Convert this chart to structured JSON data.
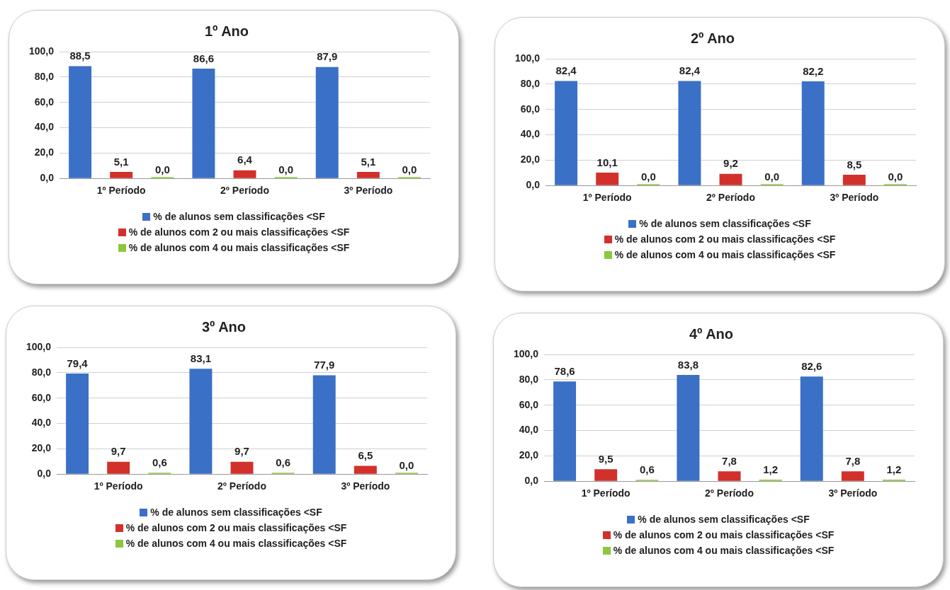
{
  "chart_data": [
    {
      "type": "bar",
      "title": "1º Ano",
      "categories": [
        "1º Período",
        "2º Período",
        "3º Período"
      ],
      "ylim": [
        0,
        100
      ],
      "yticks": [
        {
          "value": 0,
          "label": "0,0"
        },
        {
          "value": 20,
          "label": "20,0"
        },
        {
          "value": 40,
          "label": "40,0"
        },
        {
          "value": 60,
          "label": "60,0"
        },
        {
          "value": 80,
          "label": "80,0"
        },
        {
          "value": 100,
          "label": "100,0"
        }
      ],
      "grid": "y",
      "legend": "bottom",
      "series": [
        {
          "name": "% de alunos sem classificações <SF",
          "color": "#3a70c6",
          "values": [
            88.5,
            86.6,
            87.9
          ],
          "value_labels": [
            "88,5",
            "86,6",
            "87,9"
          ]
        },
        {
          "name": "% de alunos com 2 ou mais classificações <SF",
          "color": "#d2312b",
          "values": [
            5.1,
            6.4,
            5.1
          ],
          "value_labels": [
            "5,1",
            "6,4",
            "5,1"
          ]
        },
        {
          "name": "% de alunos com 4 ou mais classificações <SF",
          "color": "#8dc63f",
          "values": [
            0,
            0,
            0
          ],
          "value_labels": [
            "0,0",
            "0,0",
            "0,0"
          ]
        }
      ]
    },
    {
      "type": "bar",
      "title": "2º Ano",
      "categories": [
        "1º Período",
        "2º Período",
        "3º Período"
      ],
      "ylim": [
        0,
        100
      ],
      "yticks": [
        {
          "value": 0,
          "label": "0,0"
        },
        {
          "value": 20,
          "label": "20,0"
        },
        {
          "value": 40,
          "label": "40,0"
        },
        {
          "value": 60,
          "label": "60,0"
        },
        {
          "value": 80,
          "label": "80,0"
        },
        {
          "value": 100,
          "label": "100,0"
        }
      ],
      "grid": "y",
      "legend": "bottom",
      "series": [
        {
          "name": "% de alunos sem classificações <SF",
          "color": "#3a70c6",
          "values": [
            82.4,
            82.4,
            82.2
          ],
          "value_labels": [
            "82,4",
            "82,4",
            "82,2"
          ]
        },
        {
          "name": "% de alunos com 2 ou mais classificações <SF",
          "color": "#d2312b",
          "values": [
            10.1,
            9.2,
            8.5
          ],
          "value_labels": [
            "10,1",
            "9,2",
            "8,5"
          ]
        },
        {
          "name": "% de alunos com 4 ou mais classificações <SF",
          "color": "#8dc63f",
          "values": [
            0,
            0,
            0
          ],
          "value_labels": [
            "0,0",
            "0,0",
            "0,0"
          ]
        }
      ]
    },
    {
      "type": "bar",
      "title": "3º Ano",
      "categories": [
        "1º Período",
        "2º Período",
        "3º Período"
      ],
      "ylim": [
        0,
        100
      ],
      "yticks": [
        {
          "value": 0,
          "label": "0,0"
        },
        {
          "value": 20,
          "label": "20,0"
        },
        {
          "value": 40,
          "label": "40,0"
        },
        {
          "value": 60,
          "label": "60,0"
        },
        {
          "value": 80,
          "label": "80,0"
        },
        {
          "value": 100,
          "label": "100,0"
        }
      ],
      "grid": "y",
      "legend": "bottom",
      "series": [
        {
          "name": "% de alunos sem classificações <SF",
          "color": "#3a70c6",
          "values": [
            79.4,
            83.1,
            77.9
          ],
          "value_labels": [
            "79,4",
            "83,1",
            "77,9"
          ]
        },
        {
          "name": "% de alunos com 2 ou mais classificações <SF",
          "color": "#d2312b",
          "values": [
            9.7,
            9.7,
            6.5
          ],
          "value_labels": [
            "9,7",
            "9,7",
            "6,5"
          ]
        },
        {
          "name": "% de alunos com 4 ou mais classificações <SF",
          "color": "#8dc63f",
          "values": [
            0.6,
            0.6,
            0
          ],
          "value_labels": [
            "0,6",
            "0,6",
            "0,0"
          ]
        }
      ]
    },
    {
      "type": "bar",
      "title": "4º Ano",
      "categories": [
        "1º Período",
        "2º Período",
        "3º Período"
      ],
      "ylim": [
        0,
        100
      ],
      "yticks": [
        {
          "value": 0,
          "label": "0,0"
        },
        {
          "value": 20,
          "label": "20,0"
        },
        {
          "value": 40,
          "label": "40,0"
        },
        {
          "value": 60,
          "label": "60,0"
        },
        {
          "value": 80,
          "label": "80,0"
        },
        {
          "value": 100,
          "label": "100,0"
        }
      ],
      "grid": "y",
      "legend": "bottom",
      "series": [
        {
          "name": "% de alunos sem classificações <SF",
          "color": "#3a70c6",
          "values": [
            78.6,
            83.8,
            82.6
          ],
          "value_labels": [
            "78,6",
            "83,8",
            "82,6"
          ]
        },
        {
          "name": "% de alunos com 2 ou mais classificações <SF",
          "color": "#d2312b",
          "values": [
            9.5,
            7.8,
            7.8
          ],
          "value_labels": [
            "9,5",
            "7,8",
            "7,8"
          ]
        },
        {
          "name": "% de alunos com 4 ou mais classificações <SF",
          "color": "#8dc63f",
          "values": [
            0.6,
            1.2,
            1.2
          ],
          "value_labels": [
            "0,6",
            "1,2",
            "1,2"
          ]
        }
      ]
    }
  ]
}
